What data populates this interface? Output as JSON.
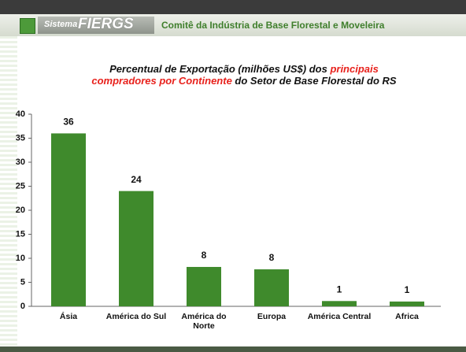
{
  "header": {
    "brand_small": "Sistema",
    "brand": "FIERGS",
    "title": "Comitê da Indústria de Base Florestal e Moveleira"
  },
  "chart_data": {
    "type": "bar",
    "title": [
      {
        "text": "Percentual de Exportação (milhões US$) dos ",
        "color": "#111111"
      },
      {
        "text": "principais compradores  por Continente",
        "color": "#e8211c"
      },
      {
        "text": " do Setor de Base Florestal do RS",
        "color": "#111111"
      }
    ],
    "categories": [
      "Ásia",
      "América do Sul",
      "América do Norte",
      "Europa",
      "América Central",
      "Africa"
    ],
    "values": [
      36,
      24,
      8.2,
      7.7,
      1.1,
      1
    ],
    "value_labels": [
      "36",
      "24",
      "8",
      "8",
      "1",
      "1"
    ],
    "color": "#3f8a2c",
    "ylim": [
      0,
      40
    ],
    "yticks": [
      0,
      5,
      10,
      15,
      20,
      25,
      30,
      35,
      40
    ],
    "grid": false
  }
}
